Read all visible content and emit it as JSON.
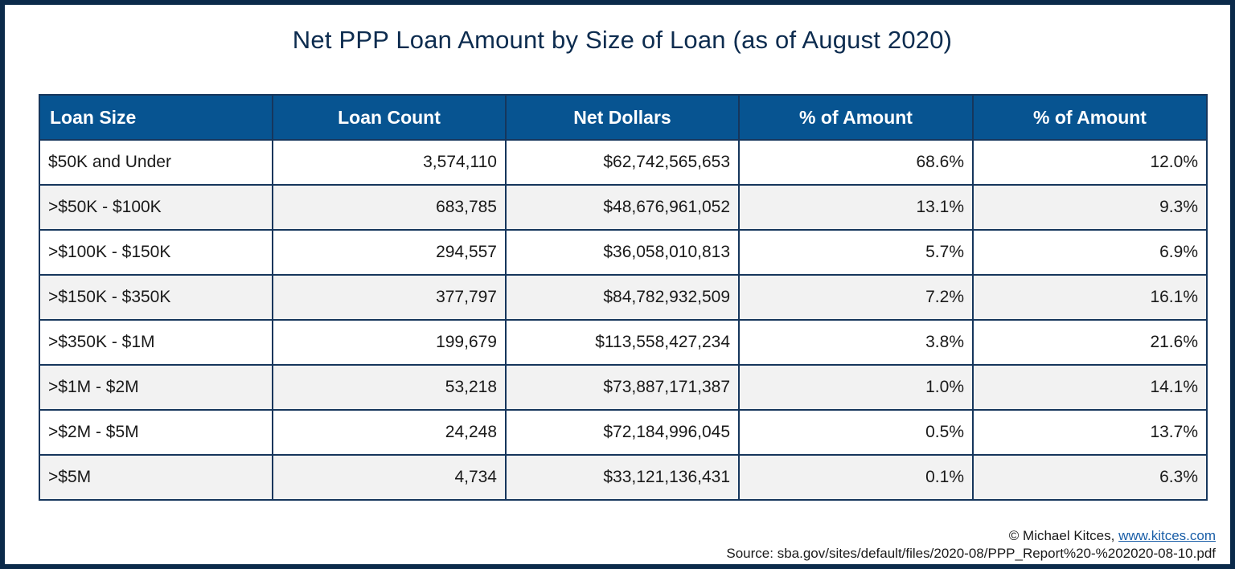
{
  "title": "Net PPP Loan Amount by Size of Loan (as of August 2020)",
  "table": {
    "headers": [
      "Loan Size",
      "Loan Count",
      "Net Dollars",
      "% of Amount",
      "% of Amount"
    ],
    "rows": [
      {
        "size": "$50K and Under",
        "count": "3,574,110",
        "dollars": "$62,742,565,653",
        "pct_count": "68.6%",
        "pct_amount": "12.0%"
      },
      {
        "size": ">$50K - $100K",
        "count": "683,785",
        "dollars": "$48,676,961,052",
        "pct_count": "13.1%",
        "pct_amount": "9.3%"
      },
      {
        "size": ">$100K - $150K",
        "count": "294,557",
        "dollars": "$36,058,010,813",
        "pct_count": "5.7%",
        "pct_amount": "6.9%"
      },
      {
        "size": ">$150K - $350K",
        "count": "377,797",
        "dollars": "$84,782,932,509",
        "pct_count": "7.2%",
        "pct_amount": "16.1%"
      },
      {
        "size": ">$350K - $1M",
        "count": "199,679",
        "dollars": "$113,558,427,234",
        "pct_count": "3.8%",
        "pct_amount": "21.6%"
      },
      {
        "size": ">$1M - $2M",
        "count": "53,218",
        "dollars": "$73,887,171,387",
        "pct_count": "1.0%",
        "pct_amount": "14.1%"
      },
      {
        "size": ">$2M - $5M",
        "count": "24,248",
        "dollars": "$72,184,996,045",
        "pct_count": "0.5%",
        "pct_amount": "13.7%"
      },
      {
        "size": ">$5M",
        "count": "4,734",
        "dollars": "$33,121,136,431",
        "pct_count": "0.1%",
        "pct_amount": "6.3%"
      }
    ]
  },
  "footer": {
    "copyright": "© Michael Kitces, ",
    "link": "www.kitces.com",
    "source": "Source: sba.gov/sites/default/files/2020-08/PPP_Report%20-%202020-08-10.pdf"
  },
  "colors": {
    "frame": "#0b2a4a",
    "title": "#0d2c4f",
    "header_bg": "#075491",
    "row_alt_bg": "#f2f2f2",
    "link": "#1b5fa8"
  }
}
